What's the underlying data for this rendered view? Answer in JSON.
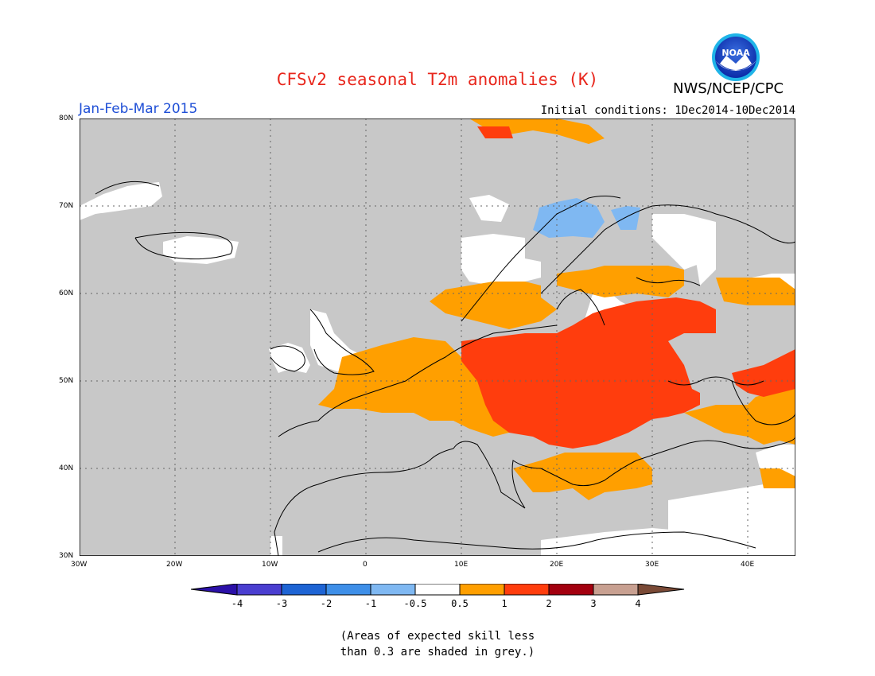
{
  "title": "CFSv2 seasonal T2m anomalies (K)",
  "organization": "NWS/NCEP/CPC",
  "logo_text": "NOAA",
  "period": "Jan-Feb-Mar 2015",
  "initial_conditions": "Initial conditions: 1Dec2014-10Dec2014",
  "lat_ticks": [
    "80N",
    "70N",
    "60N",
    "50N",
    "40N",
    "30N"
  ],
  "lon_ticks": [
    "30W",
    "20W",
    "10W",
    "0",
    "10E",
    "20E",
    "30E",
    "40E"
  ],
  "colorbar": {
    "labels": [
      "-4",
      "-3",
      "-2",
      "-1",
      "-0.5",
      "0.5",
      "1",
      "2",
      "3",
      "4"
    ],
    "colors": [
      "#2b10a8",
      "#4a3ed0",
      "#1e64d4",
      "#3e8fe8",
      "#7fb8f2",
      "#ffffff",
      "#ff9f00",
      "#ff3d0d",
      "#a3000f",
      "#c8a091",
      "#7a4a36"
    ]
  },
  "colors": {
    "land_grey": "#c8c8c8",
    "ocean": "#c8c8c8",
    "title": "#e8261c",
    "period": "#1f4fd6"
  },
  "note_lines": [
    "(Areas of expected skill less",
    "than 0.3 are shaded in grey.)"
  ]
}
